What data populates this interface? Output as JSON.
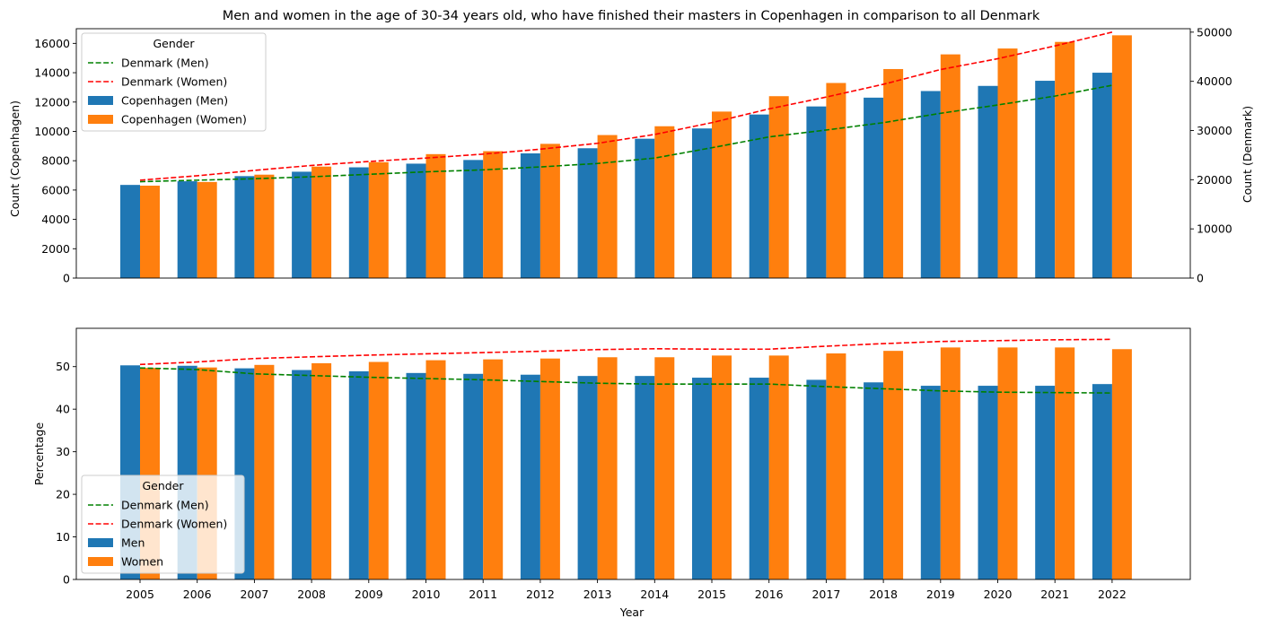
{
  "colors": {
    "cph_men": "#1f77b4",
    "cph_women": "#ff7f0e",
    "dk_men": "#008000",
    "dk_women": "#ff0000"
  },
  "chart_data": [
    {
      "type": "bar",
      "title": "Men and women in the age of 30-34 years old, who have finished their masters in Copenhagen in comparison to all Denmark",
      "ylabel": "Count (Copenhagen)",
      "y2label": "Count (Denmark)",
      "categories": [
        "2005",
        "2006",
        "2007",
        "2008",
        "2009",
        "2010",
        "2011",
        "2012",
        "2013",
        "2014",
        "2015",
        "2016",
        "2017",
        "2018",
        "2019",
        "2020",
        "2021",
        "2022"
      ],
      "ylim": [
        0,
        17000
      ],
      "y2lim": [
        0,
        50700
      ],
      "yticks": [
        0,
        2000,
        4000,
        6000,
        8000,
        10000,
        12000,
        14000,
        16000
      ],
      "y2ticks": [
        0,
        10000,
        20000,
        30000,
        40000,
        50000
      ],
      "series": [
        {
          "name": "Copenhagen (Men)",
          "kind": "bar",
          "axis": "left",
          "values": [
            6350,
            6600,
            6950,
            7250,
            7550,
            7800,
            8050,
            8500,
            8850,
            9500,
            10200,
            11150,
            11700,
            12300,
            12750,
            13100,
            13450,
            14000
          ]
        },
        {
          "name": "Copenhagen (Women)",
          "kind": "bar",
          "axis": "left",
          "values": [
            6300,
            6550,
            7050,
            7600,
            7900,
            8450,
            8650,
            9150,
            9750,
            10350,
            11350,
            12400,
            13300,
            14250,
            15250,
            15650,
            16100,
            16550
          ]
        },
        {
          "name": "Denmark (Men)",
          "kind": "line",
          "axis": "right",
          "style": "dashed",
          "values": [
            19600,
            19900,
            20200,
            20600,
            21100,
            21600,
            22000,
            22600,
            23300,
            24400,
            26500,
            28700,
            30100,
            31600,
            33500,
            35200,
            37000,
            39200
          ]
        },
        {
          "name": "Denmark (Women)",
          "kind": "line",
          "axis": "right",
          "style": "dashed",
          "values": [
            19900,
            20800,
            21900,
            22900,
            23700,
            24400,
            25200,
            26200,
            27400,
            29200,
            31600,
            34400,
            36800,
            39400,
            42400,
            44600,
            47200,
            50000
          ]
        }
      ],
      "legend": {
        "title": "Gender",
        "placement": "upper-left",
        "entries": [
          "Denmark (Men)",
          "Denmark (Women)",
          "Copenhagen (Men)",
          "Copenhagen (Women)"
        ]
      }
    },
    {
      "type": "bar",
      "xlabel": "Year",
      "ylabel": "Percentage",
      "categories": [
        "2005",
        "2006",
        "2007",
        "2008",
        "2009",
        "2010",
        "2011",
        "2012",
        "2013",
        "2014",
        "2015",
        "2016",
        "2017",
        "2018",
        "2019",
        "2020",
        "2021",
        "2022"
      ],
      "ylim": [
        0,
        59
      ],
      "yticks": [
        0,
        10,
        20,
        30,
        40,
        50
      ],
      "series": [
        {
          "name": "Men",
          "kind": "bar",
          "values": [
            50.3,
            50.2,
            49.6,
            49.2,
            48.9,
            48.5,
            48.3,
            48.1,
            47.8,
            47.8,
            47.4,
            47.4,
            46.9,
            46.3,
            45.5,
            45.5,
            45.5,
            45.9
          ]
        },
        {
          "name": "Women",
          "kind": "bar",
          "values": [
            49.7,
            49.8,
            50.4,
            50.8,
            51.1,
            51.5,
            51.7,
            51.9,
            52.2,
            52.2,
            52.6,
            52.6,
            53.1,
            53.7,
            54.5,
            54.5,
            54.5,
            54.1
          ]
        },
        {
          "name": "Denmark (Men)",
          "kind": "line",
          "style": "dashed",
          "values": [
            49.7,
            49.3,
            48.3,
            47.9,
            47.5,
            47.2,
            46.9,
            46.5,
            46.1,
            45.9,
            45.9,
            45.9,
            45.3,
            44.8,
            44.3,
            44.0,
            43.9,
            43.8
          ]
        },
        {
          "name": "Denmark (Women)",
          "kind": "line",
          "style": "dashed",
          "values": [
            50.5,
            51.1,
            51.9,
            52.3,
            52.7,
            53.0,
            53.3,
            53.6,
            54.0,
            54.2,
            54.1,
            54.1,
            54.8,
            55.4,
            55.9,
            56.1,
            56.3,
            56.4
          ]
        }
      ],
      "legend": {
        "title": "Gender",
        "placement": "lower-left",
        "entries": [
          "Denmark (Men)",
          "Denmark (Women)",
          "Men",
          "Women"
        ]
      }
    }
  ]
}
